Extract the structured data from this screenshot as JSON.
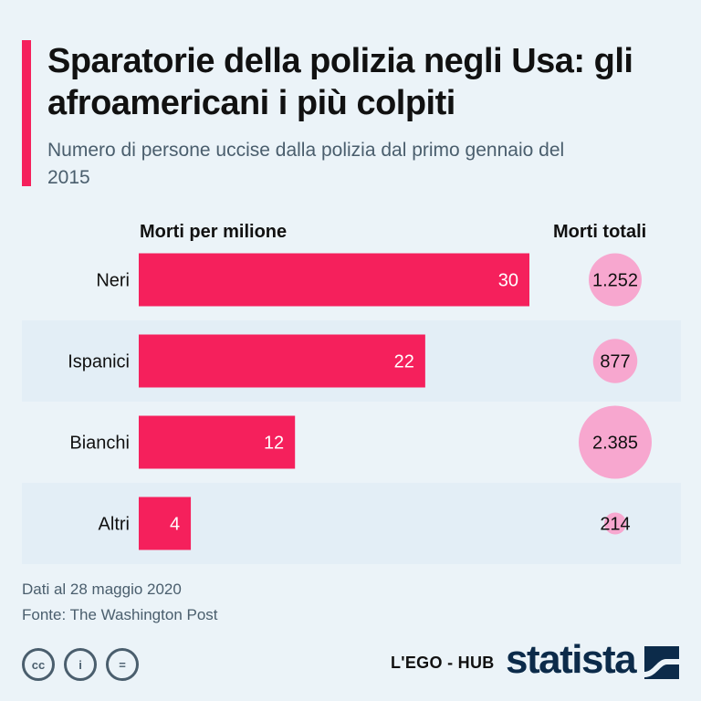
{
  "title": "Sparatorie della polizia negli Usa: gli afroamericani i più colpiti",
  "subtitle": "Numero di persone uccise dalla polizia dal primo gennaio del 2015",
  "colors": {
    "accent": "#f5205c",
    "bubble": "#f7a7cf",
    "stripe": "#e3eef6",
    "background": "#ebf3f8"
  },
  "chart_data": {
    "type": "bar",
    "orientation": "horizontal",
    "categories": [
      "Neri",
      "Ispanici",
      "Bianchi",
      "Altri"
    ],
    "series": [
      {
        "name": "Morti per milione",
        "values": [
          30,
          22,
          12,
          4
        ],
        "labels": [
          "30",
          "22",
          "12",
          "4"
        ]
      },
      {
        "name": "Morti totali",
        "values": [
          1252,
          877,
          2385,
          214
        ],
        "labels": [
          "1.252",
          "877",
          "2.385",
          "214"
        ]
      }
    ],
    "xlim": [
      0,
      30
    ],
    "grid": false,
    "legend": "none"
  },
  "headers": {
    "left": "Morti per milione",
    "right": "Morti totali"
  },
  "footer": {
    "note": "Dati al 28 maggio 2020",
    "source": "Fonte: The Washington Post",
    "publisher": "L'EGO - HUB",
    "brand": "statista",
    "icons": [
      "creative-commons-icon",
      "attribution-icon",
      "no-derivatives-icon"
    ],
    "icon_glyphs": [
      "cc",
      "i",
      "="
    ]
  }
}
